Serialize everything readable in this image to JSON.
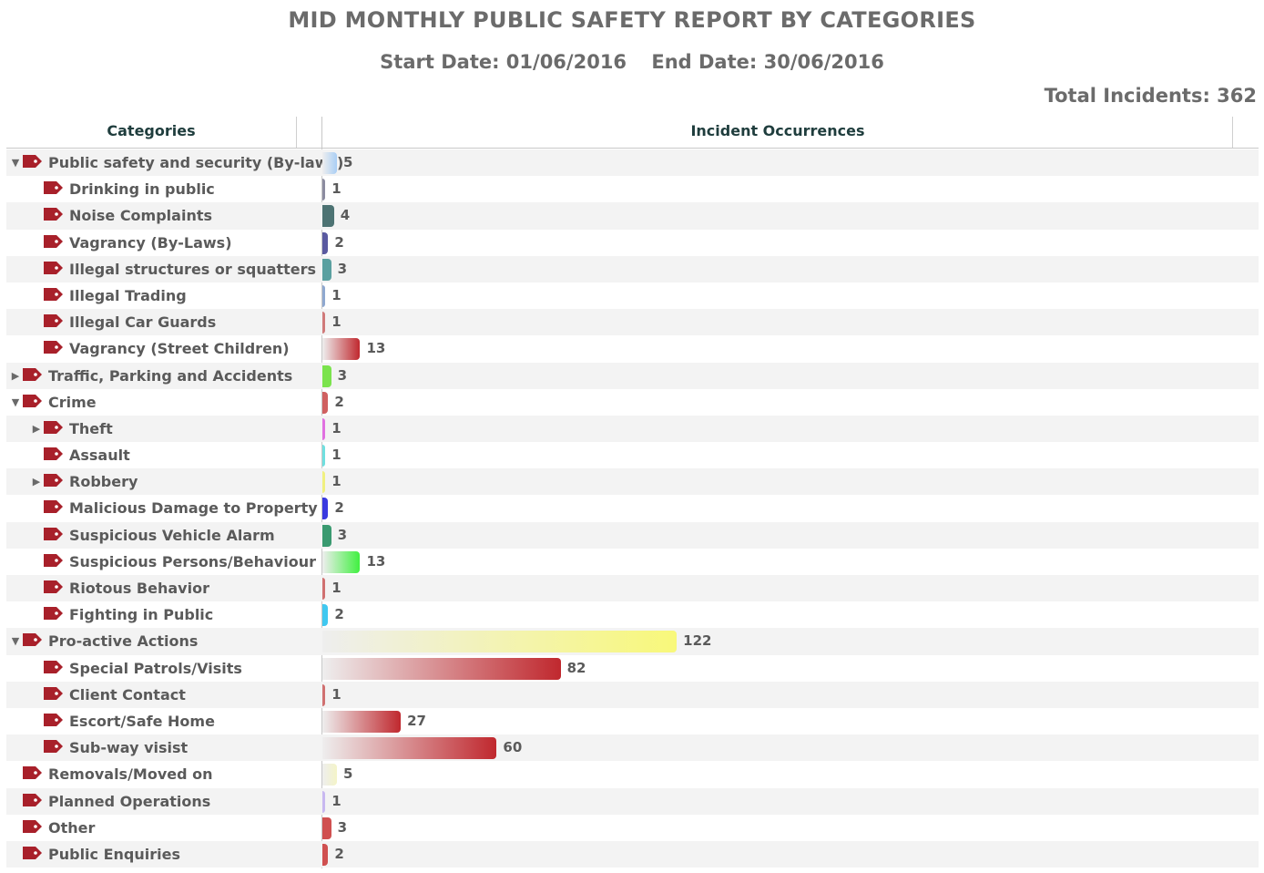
{
  "title": "MID MONTHLY PUBLIC SAFETY REPORT BY CATEGORIES",
  "start_date": "Start Date: 01/06/2016",
  "end_date": "End Date: 30/06/2016",
  "total_incidents": "Total Incidents: 362",
  "header": {
    "categories": "Categories",
    "occurrences": "Incident Occurrences"
  },
  "chart_data": {
    "type": "bar",
    "orientation": "horizontal",
    "grid": false,
    "xlim": [
      0,
      140
    ],
    "categories": [
      "Public safety and security (By-laws)",
      "Drinking in public",
      "Noise Complaints",
      "Vagrancy (By-Laws)",
      "Illegal structures or squatters",
      "Illegal Trading",
      "Illegal Car Guards",
      "Vagrancy (Street Children)",
      "Traffic, Parking and Accidents",
      "Crime",
      "Theft",
      "Assault",
      "Robbery",
      "Malicious Damage to Property",
      "Suspicious Vehicle Alarm",
      "Suspicious Persons/Behaviour",
      "Riotous Behavior",
      "Fighting in Public",
      "Pro-active Actions",
      "Special Patrols/Visits",
      "Client Contact",
      "Escort/Safe Home",
      "Sub-way visist",
      "Removals/Moved on",
      "Planned Operations",
      "Other",
      "Public Enquiries"
    ],
    "values": [
      5,
      1,
      4,
      2,
      3,
      1,
      1,
      13,
      3,
      2,
      1,
      1,
      1,
      2,
      3,
      13,
      1,
      2,
      122,
      82,
      1,
      27,
      60,
      5,
      1,
      3,
      2
    ],
    "levels": [
      0,
      1,
      1,
      1,
      1,
      1,
      1,
      1,
      0,
      0,
      1,
      1,
      1,
      1,
      1,
      1,
      1,
      1,
      0,
      1,
      1,
      1,
      1,
      0,
      0,
      0,
      0
    ],
    "expanders": [
      "open",
      "",
      "",
      "",
      "",
      "",
      "",
      "",
      "closed",
      "open",
      "closed",
      "",
      "closed",
      "",
      "",
      "",
      "",
      "",
      "open",
      "",
      "",
      "",
      "",
      "",
      "",
      "",
      ""
    ],
    "colors": [
      "#a9cef5",
      "#8c8ca0",
      "#4d7373",
      "#5a5aa0",
      "#5aa0a0",
      "#8fa8d0",
      "#d07a7a",
      "#c0282e",
      "#7be34d",
      "#d06060",
      "#e070e0",
      "#70e0e0",
      "#f0f080",
      "#3a3ae0",
      "#3a9a70",
      "#40f040",
      "#d07070",
      "#40c8f0",
      "#f8f87a",
      "#c0282e",
      "#d07070",
      "#c0282e",
      "#c0282e",
      "#f4f4c8",
      "#c8b8f0",
      "#d05050",
      "#d05050"
    ]
  }
}
